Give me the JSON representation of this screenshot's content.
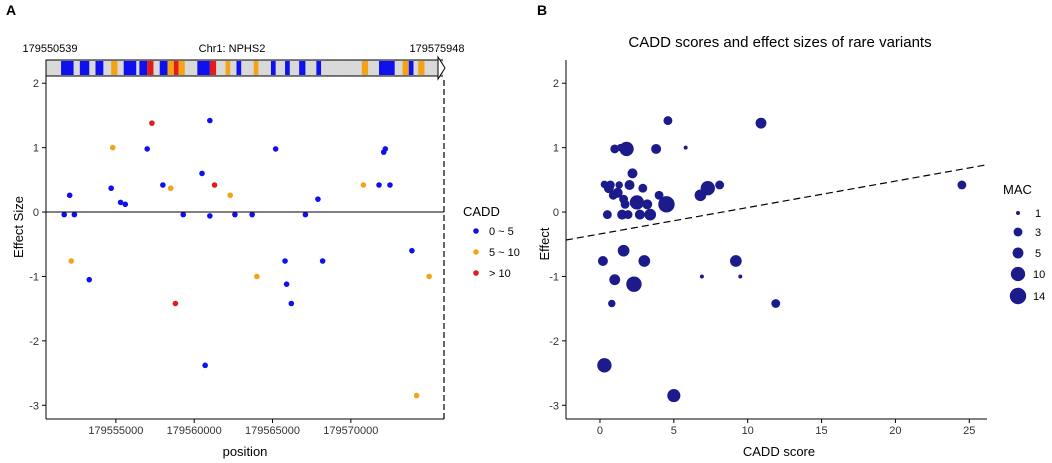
{
  "chart_data": [
    {
      "panel": "A",
      "type": "scatter",
      "title": "",
      "xlabel": "position",
      "ylabel": "Effect Size",
      "xlim": [
        179550539,
        179575948
      ],
      "ylim": [
        -3.12,
        2.05
      ],
      "xticks": [
        179555000,
        179560000,
        179565000,
        179570000
      ],
      "xtick_labels": [
        "179555000",
        "179560000",
        "179565000",
        "179570000"
      ],
      "yticks": [
        -3,
        -2,
        -1,
        0,
        1,
        2
      ],
      "ytick_labels": [
        "-3",
        "-2",
        "-1",
        "0",
        "1",
        "2"
      ],
      "gene": {
        "label": "Chr1: NPHS2",
        "start_label": "179550539",
        "end_label": "179575948",
        "exons": [
          {
            "x0": 179551500,
            "x1": 179552300,
            "cat": "0 ~ 5"
          },
          {
            "x0": 179552700,
            "x1": 179553300,
            "cat": "0 ~ 5"
          },
          {
            "x0": 179553700,
            "x1": 179554200,
            "cat": "0 ~ 5"
          },
          {
            "x0": 179554700,
            "x1": 179555100,
            "cat": "5 ~ 10"
          },
          {
            "x0": 179555500,
            "x1": 179556300,
            "cat": "0 ~ 5"
          },
          {
            "x0": 179556500,
            "x1": 179557000,
            "cat": "0 ~ 5"
          },
          {
            "x0": 179557000,
            "x1": 179557400,
            "cat": "> 10"
          },
          {
            "x0": 179557800,
            "x1": 179558300,
            "cat": "0 ~ 5"
          },
          {
            "x0": 179558300,
            "x1": 179558700,
            "cat": "5 ~ 10"
          },
          {
            "x0": 179558700,
            "x1": 179559000,
            "cat": "> 10"
          },
          {
            "x0": 179559000,
            "x1": 179559400,
            "cat": "5 ~ 10"
          },
          {
            "x0": 179560200,
            "x1": 179561000,
            "cat": "0 ~ 5"
          },
          {
            "x0": 179561000,
            "x1": 179561400,
            "cat": "> 10"
          },
          {
            "x0": 179562000,
            "x1": 179562300,
            "cat": "5 ~ 10"
          },
          {
            "x0": 179562700,
            "x1": 179563000,
            "cat": "0 ~ 5"
          },
          {
            "x0": 179563800,
            "x1": 179564100,
            "cat": "5 ~ 10"
          },
          {
            "x0": 179564900,
            "x1": 179565200,
            "cat": "0 ~ 5"
          },
          {
            "x0": 179565800,
            "x1": 179566100,
            "cat": "0 ~ 5"
          },
          {
            "x0": 179566700,
            "x1": 179567100,
            "cat": "0 ~ 5"
          },
          {
            "x0": 179567800,
            "x1": 179568100,
            "cat": "0 ~ 5"
          },
          {
            "x0": 179570700,
            "x1": 179571100,
            "cat": "5 ~ 10"
          },
          {
            "x0": 179571800,
            "x1": 179572800,
            "cat": "0 ~ 5"
          },
          {
            "x0": 179573300,
            "x1": 179573700,
            "cat": "5 ~ 10"
          },
          {
            "x0": 179573700,
            "x1": 179574000,
            "cat": "0 ~ 5"
          },
          {
            "x0": 179574300,
            "x1": 179574700,
            "cat": "5 ~ 10"
          }
        ]
      },
      "legend": {
        "title": "CADD",
        "entries": [
          {
            "label": "0 ~ 5",
            "color": "#1010ee"
          },
          {
            "label": "5 ~ 10",
            "color": "#f5a316"
          },
          {
            "label": "> 10",
            "color": "#e21b1b"
          }
        ]
      },
      "points": [
        {
          "x": 179551700,
          "y": -0.04,
          "cat": "0 ~ 5"
        },
        {
          "x": 179552050,
          "y": 0.26,
          "cat": "0 ~ 5"
        },
        {
          "x": 179552150,
          "y": -0.76,
          "cat": "5 ~ 10"
        },
        {
          "x": 179552350,
          "y": -0.04,
          "cat": "0 ~ 5"
        },
        {
          "x": 179553300,
          "y": -1.05,
          "cat": "0 ~ 5"
        },
        {
          "x": 179554700,
          "y": 0.37,
          "cat": "0 ~ 5"
        },
        {
          "x": 179554800,
          "y": 1.0,
          "cat": "5 ~ 10"
        },
        {
          "x": 179555300,
          "y": 0.15,
          "cat": "0 ~ 5"
        },
        {
          "x": 179555600,
          "y": 0.12,
          "cat": "0 ~ 5"
        },
        {
          "x": 179557000,
          "y": 0.98,
          "cat": "0 ~ 5"
        },
        {
          "x": 179557300,
          "y": 1.38,
          "cat": "> 10"
        },
        {
          "x": 179558000,
          "y": 0.42,
          "cat": "0 ~ 5"
        },
        {
          "x": 179558500,
          "y": 0.37,
          "cat": "5 ~ 10"
        },
        {
          "x": 179558800,
          "y": -1.42,
          "cat": "> 10"
        },
        {
          "x": 179559300,
          "y": -0.04,
          "cat": "0 ~ 5"
        },
        {
          "x": 179560500,
          "y": 0.6,
          "cat": "0 ~ 5"
        },
        {
          "x": 179560700,
          "y": -2.38,
          "cat": "0 ~ 5"
        },
        {
          "x": 179561000,
          "y": 1.42,
          "cat": "0 ~ 5"
        },
        {
          "x": 179561000,
          "y": -0.06,
          "cat": "0 ~ 5"
        },
        {
          "x": 179561300,
          "y": 0.42,
          "cat": "> 10"
        },
        {
          "x": 179562300,
          "y": 0.26,
          "cat": "5 ~ 10"
        },
        {
          "x": 179562600,
          "y": -0.04,
          "cat": "0 ~ 5"
        },
        {
          "x": 179563700,
          "y": -0.04,
          "cat": "0 ~ 5"
        },
        {
          "x": 179564000,
          "y": -1.0,
          "cat": "5 ~ 10"
        },
        {
          "x": 179565200,
          "y": 0.98,
          "cat": "0 ~ 5"
        },
        {
          "x": 179565800,
          "y": -0.76,
          "cat": "0 ~ 5"
        },
        {
          "x": 179565900,
          "y": -1.12,
          "cat": "0 ~ 5"
        },
        {
          "x": 179566200,
          "y": -1.42,
          "cat": "0 ~ 5"
        },
        {
          "x": 179567100,
          "y": -0.04,
          "cat": "0 ~ 5"
        },
        {
          "x": 179567900,
          "y": 0.2,
          "cat": "0 ~ 5"
        },
        {
          "x": 179568200,
          "y": -0.76,
          "cat": "0 ~ 5"
        },
        {
          "x": 179570800,
          "y": 0.42,
          "cat": "5 ~ 10"
        },
        {
          "x": 179571800,
          "y": 0.42,
          "cat": "0 ~ 5"
        },
        {
          "x": 179572100,
          "y": 0.93,
          "cat": "0 ~ 5"
        },
        {
          "x": 179572200,
          "y": 0.98,
          "cat": "0 ~ 5"
        },
        {
          "x": 179572500,
          "y": 0.42,
          "cat": "0 ~ 5"
        },
        {
          "x": 179573900,
          "y": -0.6,
          "cat": "0 ~ 5"
        },
        {
          "x": 179574200,
          "y": -2.85,
          "cat": "5 ~ 10"
        },
        {
          "x": 179575000,
          "y": -1.0,
          "cat": "5 ~ 10"
        }
      ]
    },
    {
      "panel": "B",
      "type": "scatter",
      "title": "CADD scores and effect sizes of rare variants",
      "xlabel": "CADD score",
      "ylabel": "Effect",
      "xlim": [
        -2.3,
        26.2
      ],
      "ylim": [
        -3.12,
        2.05
      ],
      "xticks": [
        0,
        5,
        10,
        15,
        20,
        25
      ],
      "xtick_labels": [
        "0",
        "5",
        "10",
        "15",
        "20",
        "25"
      ],
      "yticks": [
        -3,
        -2,
        -1,
        0,
        1,
        2
      ],
      "ytick_labels": [
        "-3",
        "-2",
        "-1",
        "0",
        "1",
        "2"
      ],
      "color": "#1b1b8c",
      "trend_line": {
        "intercept": -0.34,
        "slope": 0.041,
        "style": "dashed"
      },
      "legend": {
        "title": "MAC",
        "entries": [
          {
            "label": "1",
            "mac": 1
          },
          {
            "label": "3",
            "mac": 3
          },
          {
            "label": "5",
            "mac": 5
          },
          {
            "label": "10",
            "mac": 10
          },
          {
            "label": "14",
            "mac": 14
          }
        ]
      },
      "points": [
        {
          "x": 0.2,
          "y": -0.76,
          "mac": 4
        },
        {
          "x": 0.3,
          "y": 0.43,
          "mac": 2
        },
        {
          "x": 0.3,
          "y": -2.38,
          "mac": 10
        },
        {
          "x": 0.5,
          "y": -0.04,
          "mac": 3
        },
        {
          "x": 0.6,
          "y": 0.37,
          "mac": 4
        },
        {
          "x": 0.7,
          "y": 0.42,
          "mac": 3
        },
        {
          "x": 0.8,
          "y": -1.42,
          "mac": 2
        },
        {
          "x": 0.9,
          "y": 0.26,
          "mac": 3
        },
        {
          "x": 1.0,
          "y": 0.98,
          "mac": 3
        },
        {
          "x": 1.0,
          "y": -1.05,
          "mac": 5
        },
        {
          "x": 1.2,
          "y": 0.3,
          "mac": 4
        },
        {
          "x": 1.3,
          "y": 0.42,
          "mac": 2
        },
        {
          "x": 1.4,
          "y": 1.0,
          "mac": 2
        },
        {
          "x": 1.5,
          "y": -0.04,
          "mac": 4
        },
        {
          "x": 1.6,
          "y": 0.2,
          "mac": 3
        },
        {
          "x": 1.6,
          "y": -0.6,
          "mac": 6
        },
        {
          "x": 1.7,
          "y": 0.12,
          "mac": 3
        },
        {
          "x": 1.8,
          "y": 0.98,
          "mac": 10
        },
        {
          "x": 1.9,
          "y": -0.04,
          "mac": 3
        },
        {
          "x": 2.0,
          "y": 0.42,
          "mac": 4
        },
        {
          "x": 2.2,
          "y": 0.6,
          "mac": 4
        },
        {
          "x": 2.3,
          "y": -1.12,
          "mac": 12
        },
        {
          "x": 2.5,
          "y": 0.15,
          "mac": 10
        },
        {
          "x": 2.7,
          "y": -0.04,
          "mac": 4
        },
        {
          "x": 2.9,
          "y": 0.37,
          "mac": 3
        },
        {
          "x": 3.0,
          "y": -0.76,
          "mac": 6
        },
        {
          "x": 3.2,
          "y": 0.12,
          "mac": 4
        },
        {
          "x": 3.4,
          "y": -0.04,
          "mac": 6
        },
        {
          "x": 3.8,
          "y": 0.98,
          "mac": 4
        },
        {
          "x": 4.0,
          "y": 0.26,
          "mac": 3
        },
        {
          "x": 4.5,
          "y": 0.12,
          "mac": 14
        },
        {
          "x": 4.6,
          "y": 1.42,
          "mac": 3
        },
        {
          "x": 5.0,
          "y": -2.85,
          "mac": 8
        },
        {
          "x": 5.8,
          "y": 1.0,
          "mac": 1
        },
        {
          "x": 6.8,
          "y": 0.26,
          "mac": 6
        },
        {
          "x": 6.9,
          "y": -1.0,
          "mac": 1
        },
        {
          "x": 7.3,
          "y": 0.37,
          "mac": 10
        },
        {
          "x": 8.1,
          "y": 0.42,
          "mac": 3
        },
        {
          "x": 9.2,
          "y": -0.76,
          "mac": 6
        },
        {
          "x": 9.5,
          "y": -1.0,
          "mac": 1
        },
        {
          "x": 10.9,
          "y": 1.38,
          "mac": 5
        },
        {
          "x": 11.9,
          "y": -1.42,
          "mac": 3
        },
        {
          "x": 24.5,
          "y": 0.42,
          "mac": 3
        }
      ]
    }
  ]
}
